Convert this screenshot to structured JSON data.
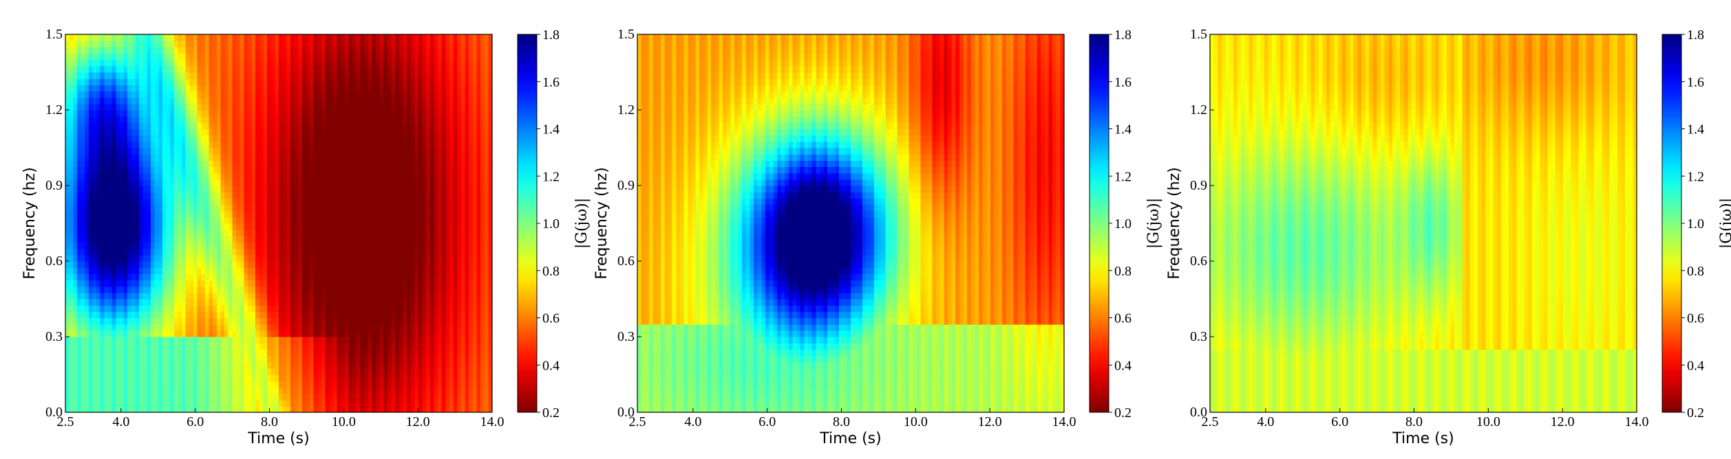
{
  "chart_data": [
    {
      "type": "heatmap",
      "panel": "left",
      "xlabel": "Time (s)",
      "ylabel": "Frequency (hz)",
      "xlim": [
        2.5,
        14.0
      ],
      "ylim": [
        0.0,
        1.5
      ],
      "xticks": [
        "2.5",
        "4.0",
        "6.0",
        "8.0",
        "10.0",
        "12.0",
        "14.0"
      ],
      "yticks": [
        "0.0",
        "0.3",
        "0.6",
        "0.9",
        "1.2",
        "1.5"
      ],
      "colorbar": {
        "label": "|G(jω)|",
        "range": [
          0.2,
          1.8
        ],
        "ticks": [
          "0.2",
          "0.4",
          "0.6",
          "0.8",
          "1.0",
          "1.2",
          "1.4",
          "1.6",
          "1.8"
        ],
        "colormap": "jet_r"
      },
      "features": [
        {
          "desc": "high-magnitude blue region",
          "t_range": [
            2.5,
            5.5
          ],
          "f_range": [
            0.3,
            1.2
          ],
          "value": 1.7
        },
        {
          "desc": "low dark-red region",
          "t_range": [
            7.5,
            14.0
          ],
          "f_range": [
            0.1,
            1.5
          ],
          "value": 0.25
        }
      ]
    },
    {
      "type": "heatmap",
      "panel": "middle",
      "xlabel": "Time (s)",
      "ylabel": "Frequency (hz)",
      "xlim": [
        2.5,
        14.0
      ],
      "ylim": [
        0.0,
        1.5
      ],
      "xticks": [
        "2.5",
        "4.0",
        "6.0",
        "8.0",
        "10.0",
        "12.0",
        "14.0"
      ],
      "yticks": [
        "0.0",
        "0.3",
        "0.6",
        "0.9",
        "1.2",
        "1.5"
      ],
      "colorbar": {
        "label": "|G(jω)|",
        "range": [
          0.2,
          1.8
        ],
        "ticks": [
          "0.2",
          "0.4",
          "0.6",
          "0.8",
          "1.0",
          "1.2",
          "1.4",
          "1.6",
          "1.8"
        ],
        "colormap": "jet_r"
      },
      "features": [
        {
          "desc": "peak dark-blue region",
          "t_range": [
            5.5,
            9.5
          ],
          "f_range": [
            0.4,
            1.05
          ],
          "value": 1.8
        },
        {
          "desc": "low dark-red region",
          "t_range": [
            9.5,
            14.0
          ],
          "f_range": [
            0.2,
            1.5
          ],
          "value": 0.3
        }
      ]
    },
    {
      "type": "heatmap",
      "panel": "right",
      "xlabel": "Time (s)",
      "ylabel": "Frequency (hz)",
      "xlim": [
        2.5,
        14.0
      ],
      "ylim": [
        0.0,
        1.5
      ],
      "xticks": [
        "2.5",
        "4.0",
        "6.0",
        "8.0",
        "10.0",
        "12.0",
        "14.0"
      ],
      "yticks": [
        "0.0",
        "0.3",
        "0.6",
        "0.9",
        "1.2",
        "1.5"
      ],
      "colorbar": {
        "label": "|G(jω)|",
        "range": [
          0.2,
          1.8
        ],
        "ticks": [
          "0.2",
          "0.4",
          "0.6",
          "0.8",
          "1.0",
          "1.2",
          "1.4",
          "1.6",
          "1.8"
        ],
        "colormap": "jet_r"
      },
      "features": [
        {
          "desc": "moderate green region",
          "t_range": [
            2.5,
            9.2
          ],
          "f_range": [
            0.3,
            1.0
          ],
          "value": 0.9
        },
        {
          "desc": "low red region",
          "t_range": [
            9.5,
            14.0
          ],
          "f_range": [
            1.1,
            1.5
          ],
          "value": 0.35
        }
      ]
    }
  ]
}
